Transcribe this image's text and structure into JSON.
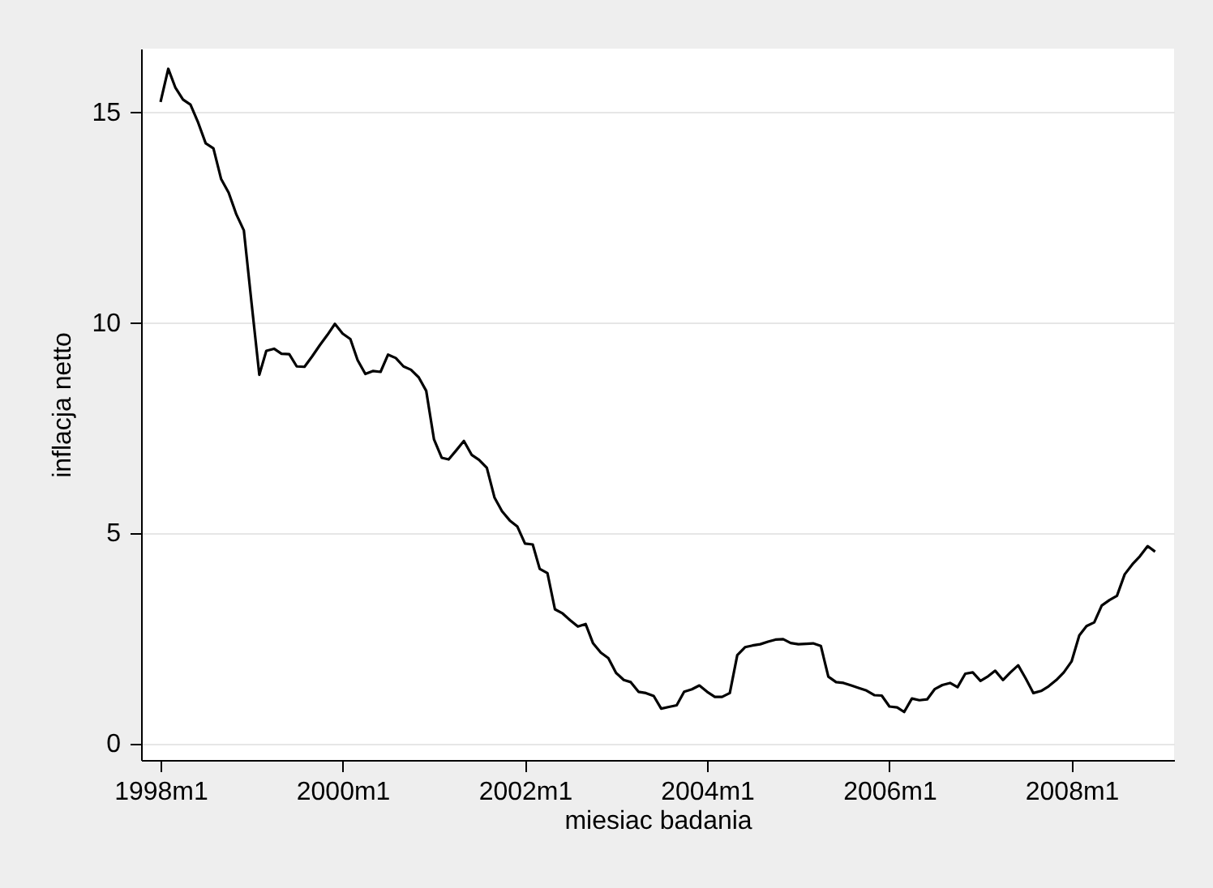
{
  "chart_data": {
    "type": "line",
    "xlabel": "miesiac badania",
    "ylabel": "inflacja netto",
    "x": [
      "1998-01",
      "1998-02",
      "1998-03",
      "1998-04",
      "1998-05",
      "1998-06",
      "1998-07",
      "1998-08",
      "1998-09",
      "1998-10",
      "1998-11",
      "1998-12",
      "1999-01",
      "1999-02",
      "1999-03",
      "1999-04",
      "1999-05",
      "1999-06",
      "1999-07",
      "1999-08",
      "1999-09",
      "1999-10",
      "1999-11",
      "1999-12",
      "2000-01",
      "2000-02",
      "2000-03",
      "2000-04",
      "2000-05",
      "2000-06",
      "2000-07",
      "2000-08",
      "2000-09",
      "2000-10",
      "2000-11",
      "2000-12",
      "2001-01",
      "2001-02",
      "2001-03",
      "2001-04",
      "2001-05",
      "2001-06",
      "2001-07",
      "2001-08",
      "2001-09",
      "2001-10",
      "2001-11",
      "2001-12",
      "2002-01",
      "2002-02",
      "2002-03",
      "2002-04",
      "2002-05",
      "2002-06",
      "2002-07",
      "2002-08",
      "2002-09",
      "2002-10",
      "2002-11",
      "2002-12",
      "2003-01",
      "2003-02",
      "2003-03",
      "2003-04",
      "2003-05",
      "2003-06",
      "2003-07",
      "2003-08",
      "2003-09",
      "2003-10",
      "2003-11",
      "2003-12",
      "2004-01",
      "2004-02",
      "2004-03",
      "2004-04",
      "2004-05",
      "2004-06",
      "2004-07",
      "2004-08",
      "2004-09",
      "2004-10",
      "2004-11",
      "2004-12",
      "2005-01",
      "2005-02",
      "2005-03",
      "2005-04",
      "2005-05",
      "2005-06",
      "2005-07",
      "2005-08",
      "2005-09",
      "2005-10",
      "2005-11",
      "2005-12",
      "2006-01",
      "2006-02",
      "2006-03",
      "2006-04",
      "2006-05",
      "2006-06",
      "2006-07",
      "2006-08",
      "2006-09",
      "2006-10",
      "2006-11",
      "2006-12",
      "2007-01",
      "2007-02",
      "2007-03",
      "2007-04",
      "2007-05",
      "2007-06",
      "2007-07",
      "2007-08",
      "2007-09",
      "2007-10",
      "2007-11",
      "2007-12",
      "2008-01",
      "2008-02",
      "2008-03",
      "2008-04",
      "2008-05",
      "2008-06",
      "2008-07",
      "2008-08",
      "2008-09",
      "2008-10",
      "2008-11",
      "2008-12"
    ],
    "series": [
      {
        "color": "#000000",
        "values": [
          15.23,
          16.02,
          15.58,
          15.29,
          15.17,
          14.74,
          14.25,
          14.13,
          13.4,
          13.08,
          12.56,
          12.18,
          10.45,
          8.75,
          9.32,
          9.37,
          9.25,
          9.24,
          8.95,
          8.94,
          9.19,
          9.45,
          9.7,
          9.96,
          9.73,
          9.6,
          9.1,
          8.77,
          8.84,
          8.82,
          9.23,
          9.15,
          8.95,
          8.87,
          8.69,
          8.37,
          7.22,
          6.78,
          6.74,
          6.96,
          7.18,
          6.85,
          6.73,
          6.54,
          5.83,
          5.51,
          5.29,
          5.15,
          4.74,
          4.72,
          4.14,
          4.04,
          3.18,
          3.08,
          2.92,
          2.77,
          2.83,
          2.37,
          2.15,
          2.02,
          1.67,
          1.5,
          1.45,
          1.22,
          1.19,
          1.12,
          0.82,
          0.86,
          0.9,
          1.22,
          1.28,
          1.37,
          1.22,
          1.1,
          1.1,
          1.19,
          2.09,
          2.28,
          2.32,
          2.35,
          2.41,
          2.46,
          2.47,
          2.38,
          2.35,
          2.36,
          2.37,
          2.31,
          1.58,
          1.45,
          1.43,
          1.37,
          1.31,
          1.25,
          1.14,
          1.13,
          0.87,
          0.85,
          0.74,
          1.06,
          1.02,
          1.04,
          1.28,
          1.38,
          1.43,
          1.33,
          1.65,
          1.68,
          1.48,
          1.59,
          1.72,
          1.5,
          1.68,
          1.85,
          1.54,
          1.19,
          1.24,
          1.35,
          1.5,
          1.68,
          1.94,
          2.56,
          2.78,
          2.87,
          3.27,
          3.4,
          3.5,
          4.01,
          4.25,
          4.44,
          4.68,
          4.55
        ]
      }
    ],
    "xlim": [
      "1997-10-15",
      "2009-02-15"
    ],
    "xticks": [
      {
        "value": "1998-01",
        "label": "1998m1"
      },
      {
        "value": "2000-01",
        "label": "2000m1"
      },
      {
        "value": "2002-01",
        "label": "2002m1"
      },
      {
        "value": "2004-01",
        "label": "2004m1"
      },
      {
        "value": "2006-01",
        "label": "2006m1"
      },
      {
        "value": "2008-01",
        "label": "2008m1"
      }
    ],
    "ylim": [
      -0.4,
      16.5
    ],
    "yticks": [
      0,
      5,
      10,
      15
    ],
    "grid": "y",
    "marker": "none",
    "line_style": "solid"
  }
}
